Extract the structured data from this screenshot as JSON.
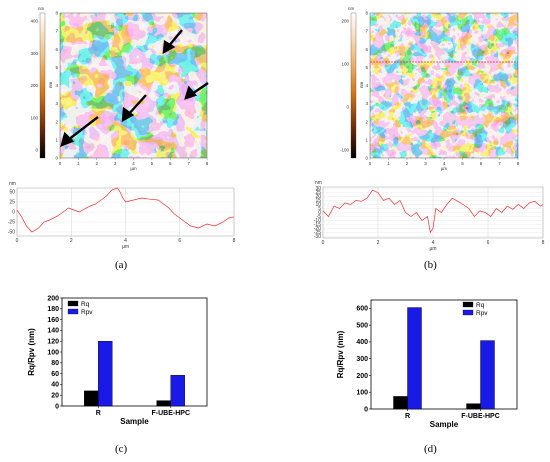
{
  "panel_labels": [
    "(a)",
    "(b)",
    "(c)",
    "(d)"
  ],
  "afm": [
    {
      "colorbar_unit": "nm",
      "colorbar_ticks": [
        "400",
        "300",
        "200",
        "100",
        "0"
      ],
      "colorbar_axis": "nm",
      "x_ticks": [
        "0",
        "1",
        "2",
        "3",
        "4",
        "5",
        "6",
        "7",
        "8"
      ],
      "x_unit": "µm",
      "y_ticks": [
        "8",
        "7",
        "6",
        "5",
        "4",
        "3",
        "2",
        "1",
        "0"
      ],
      "y_unit": "µm"
    },
    {
      "colorbar_unit": "nm",
      "colorbar_ticks": [
        "200",
        "100",
        "0",
        "-100"
      ],
      "colorbar_axis": "nm",
      "x_ticks": [
        "0",
        "1",
        "2",
        "3",
        "4",
        "5",
        "6",
        "7",
        "8"
      ],
      "x_unit": "µm",
      "y_ticks": [
        "8",
        "7",
        "6",
        "5",
        "4",
        "3",
        "2",
        "1",
        "0"
      ],
      "y_unit": "µm"
    }
  ],
  "chart_data": [
    {
      "type": "line",
      "panel": "a",
      "ylabel": "nm",
      "xlabel": "µm",
      "x_ticks": [
        "0",
        "2",
        "4",
        "6",
        "8"
      ],
      "y_ticks": [
        "50",
        "25",
        "0",
        "-25",
        "-50"
      ],
      "xlim": [
        0,
        8
      ],
      "ylim": [
        -60,
        60
      ],
      "grid": true,
      "series": [
        {
          "color": "#e8302f",
          "x": [
            0,
            0.15,
            0.35,
            0.55,
            0.8,
            1.0,
            1.2,
            1.5,
            1.7,
            1.9,
            2.1,
            2.3,
            2.5,
            2.7,
            2.9,
            3.1,
            3.3,
            3.5,
            3.7,
            3.8,
            3.9,
            4.0,
            4.3,
            4.6,
            4.9,
            5.2,
            5.4,
            5.6,
            5.8,
            6.0,
            6.2,
            6.4,
            6.7,
            7.0,
            7.3,
            7.6,
            7.8,
            8.0
          ],
          "y": [
            5,
            -10,
            -35,
            -50,
            -40,
            -25,
            -20,
            -10,
            0,
            10,
            5,
            0,
            8,
            15,
            20,
            30,
            40,
            55,
            60,
            50,
            35,
            25,
            30,
            35,
            32,
            30,
            20,
            10,
            -5,
            -15,
            -25,
            -35,
            -40,
            -30,
            -35,
            -25,
            -15,
            -12
          ]
        }
      ]
    },
    {
      "type": "line",
      "panel": "b",
      "ylabel": "nm",
      "xlabel": "µm",
      "x_ticks": [
        "0",
        "2",
        "4",
        "6",
        "8"
      ],
      "y_ticks": [
        "30",
        "25",
        "20",
        "15",
        "10",
        "5",
        "0",
        "-5",
        "-10",
        "-15",
        "-20",
        "-25",
        "-30"
      ],
      "xlim": [
        0,
        8
      ],
      "ylim": [
        -32,
        32
      ],
      "grid": true,
      "series": [
        {
          "color": "#e8302f",
          "x": [
            0,
            0.2,
            0.4,
            0.6,
            0.8,
            1.0,
            1.2,
            1.4,
            1.6,
            1.8,
            2.0,
            2.2,
            2.4,
            2.6,
            2.8,
            3.0,
            3.2,
            3.4,
            3.6,
            3.8,
            3.9,
            4.0,
            4.1,
            4.3,
            4.5,
            4.7,
            4.9,
            5.1,
            5.3,
            5.5,
            5.7,
            5.9,
            6.1,
            6.3,
            6.5,
            6.7,
            6.9,
            7.1,
            7.3,
            7.5,
            7.7,
            7.9,
            8.0
          ],
          "y": [
            2,
            -5,
            8,
            5,
            12,
            10,
            15,
            14,
            18,
            28,
            25,
            15,
            18,
            10,
            15,
            0,
            -5,
            0,
            -10,
            -5,
            -25,
            -20,
            5,
            0,
            10,
            18,
            14,
            10,
            5,
            -5,
            2,
            0,
            -5,
            5,
            0,
            8,
            4,
            10,
            5,
            12,
            14,
            8,
            10
          ]
        }
      ]
    },
    {
      "type": "bar",
      "panel": "c",
      "categories": [
        "R",
        "F-UBE-HPC"
      ],
      "xlabel": "Sample",
      "ylabel": "Rq/Rpv (nm)",
      "ylim": [
        0,
        200
      ],
      "y_ticks": [
        "0",
        "20",
        "40",
        "60",
        "80",
        "100",
        "120",
        "140",
        "160",
        "180",
        "200"
      ],
      "legend_position": "top-left",
      "series": [
        {
          "name": "Rq",
          "color": "#000000",
          "values": [
            28,
            10
          ]
        },
        {
          "name": "Rpv",
          "color": "#1a1ae6",
          "values": [
            120,
            57
          ]
        }
      ]
    },
    {
      "type": "bar",
      "panel": "d",
      "categories": [
        "R",
        "F-UBE-HPC"
      ],
      "xlabel": "Sample",
      "ylabel": "Rq/Rpv (nm)",
      "ylim": [
        0,
        650
      ],
      "y_ticks": [
        "0",
        "100",
        "200",
        "300",
        "400",
        "500",
        "600"
      ],
      "legend_position": "top-right",
      "series": [
        {
          "name": "Rq",
          "color": "#000000",
          "values": [
            75,
            32
          ]
        },
        {
          "name": "Rpv",
          "color": "#1a1ae6",
          "values": [
            605,
            408
          ]
        }
      ]
    }
  ]
}
